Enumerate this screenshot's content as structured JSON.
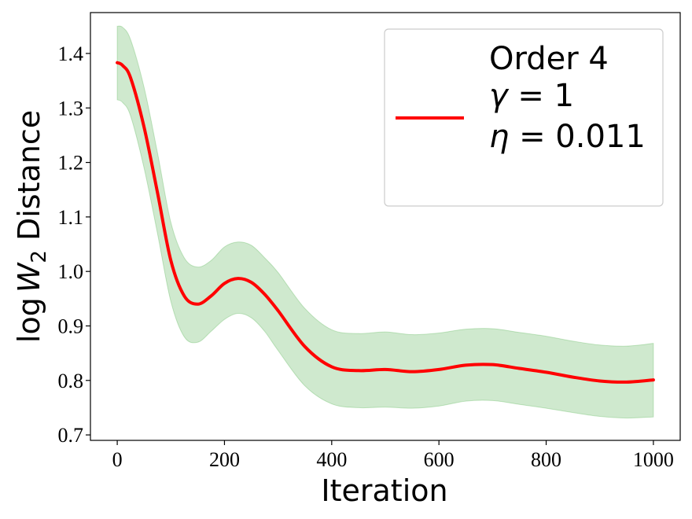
{
  "chart_data": {
    "type": "line",
    "xlabel": "Iteration",
    "ylabel_prefix": "log",
    "ylabel_var": "W",
    "ylabel_sub": "2",
    "ylabel_suffix": "Distance",
    "xlim": [
      -50,
      1050
    ],
    "ylim": [
      0.69,
      1.475
    ],
    "xticks": [
      0,
      200,
      400,
      600,
      800,
      1000
    ],
    "yticks": [
      0.7,
      0.8,
      0.9,
      1.0,
      1.1,
      1.2,
      1.3,
      1.4
    ],
    "xtick_labels": [
      "0",
      "200",
      "400",
      "600",
      "800",
      "1000"
    ],
    "ytick_labels": [
      "0.7",
      "0.8",
      "0.9",
      "1.0",
      "1.1",
      "1.2",
      "1.3",
      "1.4"
    ],
    "grid": false,
    "legend_position": "top-right",
    "legend_lines": [
      {
        "text": "Order 4"
      },
      {
        "sym": "γ",
        "text": " = 1"
      },
      {
        "sym": "η",
        "text": " = 0.011"
      }
    ],
    "series": [
      {
        "color": "#ff0000",
        "band_color": "#4daf4a",
        "x": [
          0,
          10,
          25,
          50,
          75,
          100,
          125,
          150,
          175,
          200,
          225,
          250,
          275,
          300,
          350,
          400,
          450,
          500,
          550,
          600,
          650,
          700,
          750,
          800,
          850,
          900,
          950,
          1000
        ],
        "y": [
          1.383,
          1.378,
          1.355,
          1.265,
          1.145,
          1.02,
          0.955,
          0.94,
          0.955,
          0.978,
          0.987,
          0.98,
          0.958,
          0.928,
          0.862,
          0.825,
          0.818,
          0.82,
          0.816,
          0.82,
          0.828,
          0.829,
          0.822,
          0.815,
          0.806,
          0.799,
          0.797,
          0.801
        ],
        "lower": [
          1.315,
          1.31,
          1.285,
          1.19,
          1.07,
          0.945,
          0.88,
          0.87,
          0.89,
          0.912,
          0.923,
          0.915,
          0.89,
          0.855,
          0.79,
          0.757,
          0.75,
          0.751,
          0.749,
          0.753,
          0.762,
          0.763,
          0.756,
          0.749,
          0.741,
          0.734,
          0.731,
          0.733
        ],
        "upper": [
          1.45,
          1.448,
          1.425,
          1.338,
          1.218,
          1.09,
          1.025,
          1.008,
          1.02,
          1.045,
          1.054,
          1.048,
          1.025,
          0.998,
          0.932,
          0.893,
          0.886,
          0.889,
          0.884,
          0.887,
          0.894,
          0.895,
          0.888,
          0.881,
          0.872,
          0.865,
          0.863,
          0.868
        ]
      }
    ]
  }
}
